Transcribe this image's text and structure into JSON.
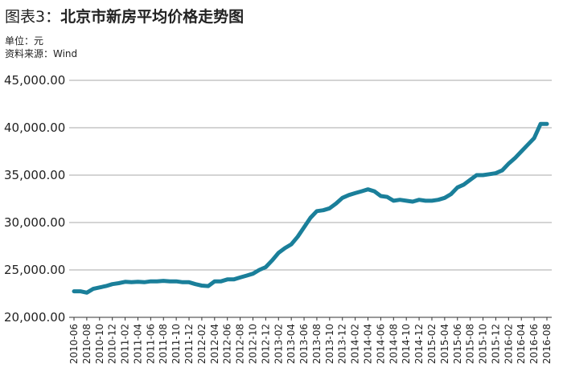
{
  "header": {
    "title_prefix": "图表3：",
    "title_main": "北京市新房平均价格走势图",
    "unit": "单位：元",
    "source": "资料来源：Wind"
  },
  "chart_data": {
    "type": "line",
    "title": "图表3：北京市新房平均价格走势图",
    "xlabel": "",
    "ylabel": "",
    "ylim": [
      20000,
      45000
    ],
    "grid": true,
    "legend": "none",
    "line_color": "#1a7f9a",
    "y_ticks": [
      "20,000.00",
      "25,000.00",
      "30,000.00",
      "35,000.00",
      "40,000.00",
      "45,000.00"
    ],
    "x_ticks": [
      "2010-06",
      "2010-08",
      "2010-10",
      "2010-12",
      "2011-02",
      "2011-04",
      "2011-06",
      "2011-08",
      "2011-10",
      "2011-12",
      "2012-02",
      "2012-04",
      "2012-06",
      "2012-08",
      "2012-10",
      "2012-12",
      "2013-02",
      "2013-04",
      "2013-06",
      "2013-08",
      "2013-10",
      "2013-12",
      "2014-02",
      "2014-04",
      "2014-06",
      "2014-08",
      "2014-10",
      "2014-12",
      "2015-02",
      "2015-04",
      "2015-06",
      "2015-08",
      "2015-10",
      "2015-12",
      "2016-02",
      "2016-04",
      "2016-06",
      "2016-08"
    ],
    "series": [
      {
        "x": [
          "2010-06",
          "2010-07",
          "2010-08",
          "2010-09",
          "2010-10",
          "2010-11",
          "2010-12",
          "2011-01",
          "2011-02",
          "2011-03",
          "2011-04",
          "2011-05",
          "2011-06",
          "2011-07",
          "2011-08",
          "2011-09",
          "2011-10",
          "2011-11",
          "2011-12",
          "2012-01",
          "2012-02",
          "2012-03",
          "2012-04",
          "2012-05",
          "2012-06",
          "2012-07",
          "2012-08",
          "2012-09",
          "2012-10",
          "2012-11",
          "2012-12",
          "2013-01",
          "2013-02",
          "2013-03",
          "2013-04",
          "2013-05",
          "2013-06",
          "2013-07",
          "2013-08",
          "2013-09",
          "2013-10",
          "2013-11",
          "2013-12",
          "2014-01",
          "2014-02",
          "2014-03",
          "2014-04",
          "2014-05",
          "2014-06",
          "2014-07",
          "2014-08",
          "2014-09",
          "2014-10",
          "2014-11",
          "2014-12",
          "2015-01",
          "2015-02",
          "2015-03",
          "2015-04",
          "2015-05",
          "2015-06",
          "2015-07",
          "2015-08",
          "2015-09",
          "2015-10",
          "2015-11",
          "2015-12",
          "2016-01",
          "2016-02",
          "2016-03",
          "2016-04",
          "2016-05",
          "2016-06",
          "2016-07",
          "2016-08"
        ],
        "values": [
          22750,
          22750,
          22600,
          23000,
          23150,
          23300,
          23500,
          23600,
          23750,
          23700,
          23750,
          23700,
          23800,
          23800,
          23850,
          23800,
          23800,
          23700,
          23700,
          23500,
          23350,
          23300,
          23800,
          23800,
          24000,
          24000,
          24200,
          24400,
          24600,
          25000,
          25300,
          26000,
          26800,
          27300,
          27700,
          28500,
          29500,
          30500,
          31200,
          31300,
          31500,
          32000,
          32600,
          32900,
          33100,
          33300,
          33500,
          33300,
          32800,
          32700,
          32300,
          32400,
          32300,
          32200,
          32400,
          32300,
          32300,
          32400,
          32600,
          33000,
          33700,
          34000,
          34500,
          35000,
          35000,
          35100,
          35200,
          35500,
          36200,
          36800,
          37500,
          38200,
          38900,
          40400,
          40400
        ]
      }
    ]
  }
}
